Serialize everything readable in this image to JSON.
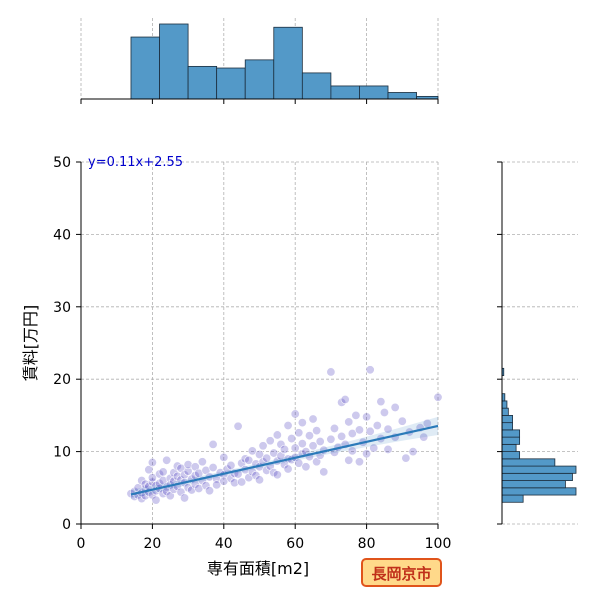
{
  "chart_data": {
    "type": "scatter",
    "xlabel": "専有面積[m2]",
    "ylabel": "賃料[万円]",
    "xlim": [
      0,
      100
    ],
    "ylim": [
      0,
      50
    ],
    "xticks": [
      0,
      20,
      40,
      60,
      80,
      100
    ],
    "yticks": [
      0,
      10,
      20,
      30,
      40,
      50
    ],
    "grid": true,
    "regression": {
      "equation": "y=0.11x+2.55",
      "slope": 0.11,
      "intercept": 2.55,
      "x_range": [
        14,
        100
      ]
    },
    "equation_color": "#0000cc",
    "line_color": "#2a7ab9",
    "point_color": "#4a3ec0",
    "bar_color": "#5399c8",
    "top_histogram": {
      "bins": [
        [
          14,
          22,
          19
        ],
        [
          22,
          30,
          23
        ],
        [
          30,
          38,
          10
        ],
        [
          38,
          46,
          9.5
        ],
        [
          46,
          54,
          12
        ],
        [
          54,
          62,
          22
        ],
        [
          62,
          70,
          8
        ],
        [
          70,
          78,
          4
        ],
        [
          78,
          86,
          4
        ],
        [
          86,
          94,
          2
        ],
        [
          94,
          100,
          0.8
        ]
      ]
    },
    "right_histogram": {
      "bins": [
        [
          3,
          4,
          6
        ],
        [
          4,
          5,
          21
        ],
        [
          5,
          6,
          18
        ],
        [
          6,
          7,
          20
        ],
        [
          7,
          8,
          21
        ],
        [
          8,
          9,
          15
        ],
        [
          9,
          10,
          5
        ],
        [
          10,
          11,
          4
        ],
        [
          11,
          12,
          5
        ],
        [
          12,
          13,
          5
        ],
        [
          13,
          14,
          3
        ],
        [
          14,
          15,
          3
        ],
        [
          15,
          16,
          1.8
        ],
        [
          16,
          17,
          1.4
        ],
        [
          17,
          18,
          0.8
        ],
        [
          20.5,
          21.5,
          0.5
        ]
      ]
    },
    "points": [
      [
        14,
        4.2
      ],
      [
        15,
        3.8
      ],
      [
        15,
        4.5
      ],
      [
        16,
        4.0
      ],
      [
        16,
        5.0
      ],
      [
        17,
        3.5
      ],
      [
        17,
        4.3
      ],
      [
        17,
        6.0
      ],
      [
        18,
        4.8
      ],
      [
        18,
        5.5
      ],
      [
        18,
        3.9
      ],
      [
        19,
        4.4
      ],
      [
        19,
        7.5
      ],
      [
        19,
        5.2
      ],
      [
        20,
        4.0
      ],
      [
        20,
        5.8
      ],
      [
        20,
        8.5
      ],
      [
        20,
        6.4
      ],
      [
        21,
        4.6
      ],
      [
        21,
        5.3
      ],
      [
        21,
        3.3
      ],
      [
        22,
        6.9
      ],
      [
        22,
        4.9
      ],
      [
        22,
        5.6
      ],
      [
        23,
        4.2
      ],
      [
        23,
        6.0
      ],
      [
        23,
        7.2
      ],
      [
        24,
        5.1
      ],
      [
        24,
        8.8
      ],
      [
        24,
        4.5
      ],
      [
        25,
        6.3
      ],
      [
        25,
        5.4
      ],
      [
        25,
        3.9
      ],
      [
        26,
        7.1
      ],
      [
        26,
        5.9
      ],
      [
        26,
        4.8
      ],
      [
        27,
        6.6
      ],
      [
        27,
        8.0
      ],
      [
        27,
        5.2
      ],
      [
        28,
        6.1
      ],
      [
        28,
        4.4
      ],
      [
        28,
        7.7
      ],
      [
        29,
        5.7
      ],
      [
        29,
        6.8
      ],
      [
        29,
        3.6
      ],
      [
        30,
        7.3
      ],
      [
        30,
        5.0
      ],
      [
        30,
        8.2
      ],
      [
        31,
        6.2
      ],
      [
        31,
        4.7
      ],
      [
        32,
        7.9
      ],
      [
        32,
        5.5
      ],
      [
        32,
        6.7
      ],
      [
        33,
        4.9
      ],
      [
        33,
        7.0
      ],
      [
        34,
        6.0
      ],
      [
        34,
        8.6
      ],
      [
        35,
        5.3
      ],
      [
        35,
        7.4
      ],
      [
        36,
        6.5
      ],
      [
        36,
        4.6
      ],
      [
        37,
        11.0
      ],
      [
        37,
        7.8
      ],
      [
        38,
        6.2
      ],
      [
        38,
        5.4
      ],
      [
        39,
        7.1
      ],
      [
        40,
        6.8
      ],
      [
        40,
        9.2
      ],
      [
        40,
        5.9
      ],
      [
        41,
        7.6
      ],
      [
        42,
        6.3
      ],
      [
        42,
        8.1
      ],
      [
        43,
        5.7
      ],
      [
        43,
        7.0
      ],
      [
        44,
        13.5
      ],
      [
        44,
        6.9
      ],
      [
        45,
        8.4
      ],
      [
        45,
        5.8
      ],
      [
        46,
        7.5
      ],
      [
        46,
        9.0
      ],
      [
        47,
        6.4
      ],
      [
        47,
        8.8
      ],
      [
        48,
        7.2
      ],
      [
        48,
        10.1
      ],
      [
        49,
        6.7
      ],
      [
        49,
        8.3
      ],
      [
        50,
        7.9
      ],
      [
        50,
        9.6
      ],
      [
        50,
        6.1
      ],
      [
        51,
        8.6
      ],
      [
        51,
        10.8
      ],
      [
        52,
        7.4
      ],
      [
        52,
        9.1
      ],
      [
        53,
        8.0
      ],
      [
        53,
        11.5
      ],
      [
        54,
        7.1
      ],
      [
        54,
        9.8
      ],
      [
        55,
        8.7
      ],
      [
        55,
        12.3
      ],
      [
        55,
        6.8
      ],
      [
        56,
        9.4
      ],
      [
        56,
        11.0
      ],
      [
        57,
        8.2
      ],
      [
        57,
        10.3
      ],
      [
        58,
        13.6
      ],
      [
        58,
        9.0
      ],
      [
        58,
        7.6
      ],
      [
        59,
        11.8
      ],
      [
        59,
        8.9
      ],
      [
        60,
        15.2
      ],
      [
        60,
        10.5
      ],
      [
        60,
        9.2
      ],
      [
        61,
        12.6
      ],
      [
        61,
        8.4
      ],
      [
        62,
        11.1
      ],
      [
        62,
        14.0
      ],
      [
        62,
        9.7
      ],
      [
        63,
        10.0
      ],
      [
        63,
        7.9
      ],
      [
        64,
        12.2
      ],
      [
        64,
        9.3
      ],
      [
        65,
        14.5
      ],
      [
        65,
        10.8
      ],
      [
        66,
        8.6
      ],
      [
        66,
        12.9
      ],
      [
        67,
        11.4
      ],
      [
        67,
        9.5
      ],
      [
        68,
        10.2
      ],
      [
        68,
        7.2
      ],
      [
        70,
        21.0
      ],
      [
        70,
        11.7
      ],
      [
        71,
        13.2
      ],
      [
        71,
        9.9
      ],
      [
        72,
        10.6
      ],
      [
        73,
        16.8
      ],
      [
        73,
        12.1
      ],
      [
        74,
        17.2
      ],
      [
        74,
        11.0
      ],
      [
        75,
        14.1
      ],
      [
        75,
        8.8
      ],
      [
        76,
        12.5
      ],
      [
        76,
        10.1
      ],
      [
        77,
        15.0
      ],
      [
        78,
        13.0
      ],
      [
        78,
        8.6
      ],
      [
        79,
        11.3
      ],
      [
        80,
        14.8
      ],
      [
        80,
        9.7
      ],
      [
        81,
        21.3
      ],
      [
        81,
        12.8
      ],
      [
        82,
        10.5
      ],
      [
        83,
        13.6
      ],
      [
        84,
        16.9
      ],
      [
        84,
        11.8
      ],
      [
        85,
        15.4
      ],
      [
        86,
        10.3
      ],
      [
        86,
        13.1
      ],
      [
        88,
        16.1
      ],
      [
        88,
        12.0
      ],
      [
        90,
        14.2
      ],
      [
        91,
        9.1
      ],
      [
        92,
        12.7
      ],
      [
        93,
        10.0
      ],
      [
        95,
        13.3
      ],
      [
        96,
        12.0
      ],
      [
        97,
        13.9
      ],
      [
        100,
        17.5
      ]
    ]
  },
  "badge": {
    "text": "長岡京市",
    "fill": "#ffd98a",
    "border": "#e0541b",
    "color": "#c0301a"
  }
}
